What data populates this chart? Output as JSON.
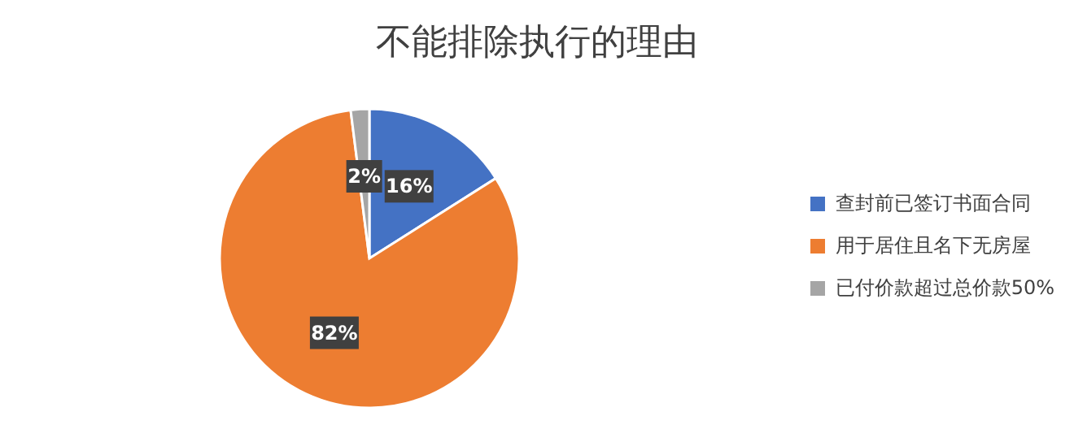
{
  "chart_data": {
    "type": "pie",
    "title": "不能排除执行的理由",
    "categories": [
      "查封前已签订书面合同",
      "用于居住且名下无房屋",
      "已付价款超过总价款50%"
    ],
    "values": [
      16,
      82,
      2
    ],
    "colors": [
      "#4472c4",
      "#ed7d31",
      "#a5a5a5"
    ],
    "value_labels": [
      "16%",
      "82%",
      "2%"
    ],
    "legend": "right"
  }
}
